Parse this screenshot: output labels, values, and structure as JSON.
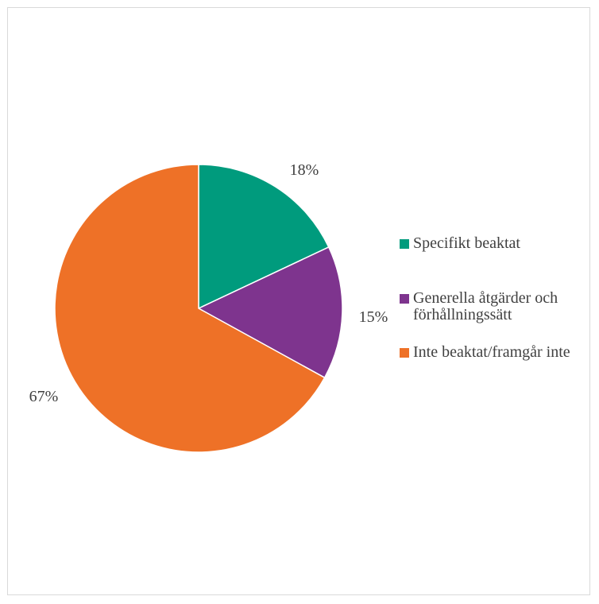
{
  "chart_data": {
    "type": "pie",
    "slices": [
      {
        "label": "Specifikt beaktat",
        "value": 18,
        "data_label": "18%",
        "color": "#009B7D"
      },
      {
        "label": "Generella åtgärder och förhållningssätt",
        "value": 15,
        "data_label": "15%",
        "color": "#7E348E"
      },
      {
        "label": "Inte beaktat/framgår inte",
        "value": 67,
        "data_label": "67%",
        "color": "#EE7127"
      }
    ],
    "start_angle_deg": 0,
    "direction": "clockwise",
    "legend_position": "right"
  }
}
